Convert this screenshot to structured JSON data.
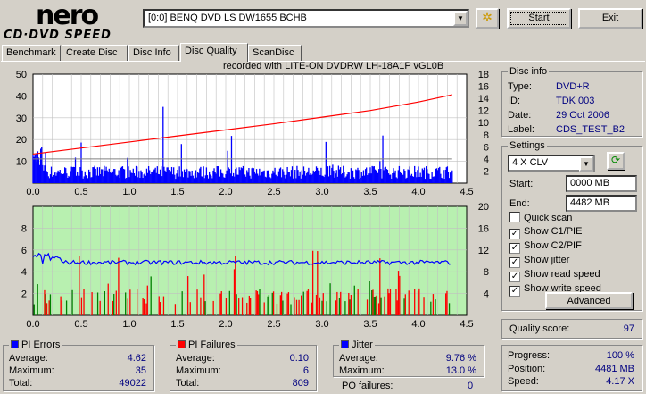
{
  "logo": {
    "line1": "nero",
    "line2": "CD·DVD SPEED"
  },
  "toolbar": {
    "drive": "[0:0]  BENQ DVD LS DW1655 BCHB",
    "start": "Start",
    "exit": "Exit"
  },
  "tabs": [
    "Benchmark",
    "Create Disc",
    "Disc Info",
    "Disc Quality",
    "ScanDisc"
  ],
  "active_tab": "Disc Quality",
  "recorded_with": "recorded with LITE-ON DVDRW LH-18A1P   vGL0B",
  "disc_info": {
    "title": "Disc info",
    "type_label": "Type:",
    "type": "DVD+R",
    "id_label": "ID:",
    "id": "TDK 003",
    "date_label": "Date:",
    "date": "29 Oct 2006",
    "label_label": "Label:",
    "label": "CDS_TEST_B2"
  },
  "settings": {
    "title": "Settings",
    "speed": "4 X CLV",
    "start_label": "Start:",
    "start": "0000 MB",
    "end_label": "End:",
    "end": "4482 MB",
    "quick_scan": "Quick scan",
    "show_c1": "Show C1/PIE",
    "show_c2": "Show C2/PIF",
    "show_jitter": "Show jitter",
    "show_read": "Show read speed",
    "show_write": "Show write speed",
    "advanced": "Advanced"
  },
  "quality": {
    "label": "Quality score:",
    "value": "97"
  },
  "pi_errors": {
    "title": "PI Errors",
    "avg_label": "Average:",
    "avg": "4.62",
    "max_label": "Maximum:",
    "max": "35",
    "total_label": "Total:",
    "total": "49022",
    "color": "#0000ff"
  },
  "pi_failures": {
    "title": "PI Failures",
    "avg_label": "Average:",
    "avg": "0.10",
    "max_label": "Maximum:",
    "max": "6",
    "total_label": "Total:",
    "total": "809",
    "color": "#ff0000"
  },
  "jitter": {
    "title": "Jitter",
    "avg_label": "Average:",
    "avg": "9.76 %",
    "max_label": "Maximum:",
    "max": "13.0 %",
    "po_label": "PO failures:",
    "po": "0",
    "color": "#0000ff"
  },
  "progress": {
    "progress_label": "Progress:",
    "progress": "100 %",
    "position_label": "Position:",
    "position": "4481 MB",
    "speed_label": "Speed:",
    "speed": "4.17 X"
  },
  "chart_data": [
    {
      "type": "bar",
      "title": "PI Errors",
      "x_ticks": [
        "0.0",
        "0.5",
        "1.0",
        "1.5",
        "2.0",
        "2.5",
        "3.0",
        "3.5",
        "4.0",
        "4.5"
      ],
      "xlim": [
        0,
        4.5
      ],
      "y_ticks": [
        "50",
        "40",
        "30",
        "20",
        "10"
      ],
      "ylim": [
        0,
        50
      ],
      "y2_ticks": [
        "18",
        "16",
        "14",
        "12",
        "10",
        "8",
        "6",
        "4",
        "2"
      ],
      "y2lim": [
        0,
        18
      ],
      "series": [
        {
          "name": "PI Errors",
          "color": "#0000ff",
          "peak": 35,
          "average": 4.62
        },
        {
          "name": "Read speed",
          "color": "#ff0000",
          "x": [
            0,
            0.5,
            1,
            1.5,
            2,
            2.5,
            3,
            3.5,
            4,
            4.35
          ],
          "y": [
            4.8,
            5.8,
            6.8,
            7.8,
            8.8,
            9.8,
            10.9,
            12,
            13.4,
            14.6
          ]
        },
        {
          "name": "Write speed",
          "color": "#808080",
          "x": [
            0,
            4.35
          ],
          "y": [
            4,
            4
          ]
        }
      ]
    },
    {
      "type": "bar",
      "title": "PI Failures / Jitter",
      "x_ticks": [
        "0.0",
        "0.5",
        "1.0",
        "1.5",
        "2.0",
        "2.5",
        "3.0",
        "3.5",
        "4.0",
        "4.5"
      ],
      "xlim": [
        0,
        4.5
      ],
      "y_ticks": [
        "8",
        "6",
        "4",
        "2"
      ],
      "ylim": [
        0,
        10
      ],
      "y2_ticks": [
        "20",
        "16",
        "12",
        "8",
        "4"
      ],
      "y2lim": [
        0,
        20
      ],
      "series": [
        {
          "name": "PI Failures",
          "color": "#ff0000",
          "peak": 6,
          "average": 0.1
        },
        {
          "name": "Jitter",
          "color": "#0000ff",
          "x": [
            0,
            0.1,
            0.5,
            1,
            1.5,
            2,
            2.5,
            3,
            3.5,
            4,
            4.35
          ],
          "y": [
            10.5,
            10,
            9.6,
            9.7,
            9.8,
            9.7,
            9.8,
            9.8,
            9.8,
            9.7,
            9.8
          ]
        }
      ]
    }
  ]
}
